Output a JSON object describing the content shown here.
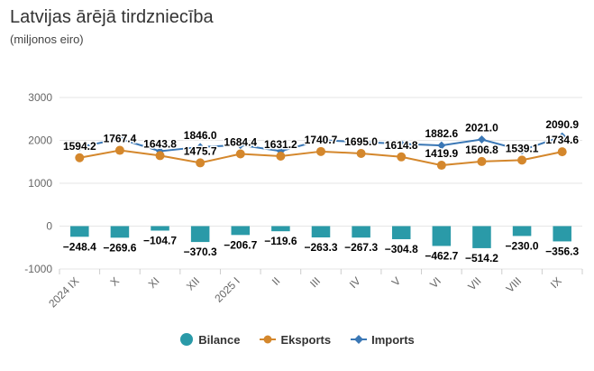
{
  "chart_data": {
    "type": "bar+line",
    "title": "Latvijas ārējā tirdzniecība",
    "subtitle": "(miljonos eiro)",
    "categories": [
      "2024 IX",
      "X",
      "XI",
      "XII",
      "2025 I",
      "II",
      "III",
      "IV",
      "V",
      "VI",
      "VII",
      "VIII",
      "IX"
    ],
    "ylim": [
      -1000,
      3000
    ],
    "yticks": [
      -1000,
      0,
      1000,
      2000,
      3000
    ],
    "series": [
      {
        "name": "Bilance",
        "type": "bar",
        "color": "#2a9aa8",
        "values": [
          -248.4,
          -269.6,
          -104.7,
          -370.3,
          -206.7,
          -119.6,
          -263.3,
          -267.3,
          -304.8,
          -462.7,
          -514.2,
          -230.0,
          -356.3
        ],
        "labels": [
          "−248.4",
          "−269.6",
          "−104.7",
          "−370.3",
          "−206.7",
          "−119.6",
          "−263.3",
          "−267.3",
          "−304.8",
          "−462.7",
          "−514.2",
          "−230.0",
          "−356.3"
        ]
      },
      {
        "name": "Eksports",
        "type": "line",
        "color": "#d4872c",
        "values": [
          1594.2,
          1767.4,
          1643.8,
          1475.7,
          1684.4,
          1631.2,
          1740.7,
          1695.0,
          1614.8,
          1419.9,
          1506.8,
          1539.1,
          1734.6
        ],
        "labels": [
          "1594.2",
          "1767.4",
          "1643.8",
          "1475.7",
          "1684.4",
          "1631.2",
          "1740.7",
          "1695.0",
          "1614.8",
          "1419.9",
          "1506.8",
          "1539.1",
          "1734.6"
        ]
      },
      {
        "name": "Imports",
        "type": "line",
        "color": "#3a77b5",
        "values": [
          1842.6,
          2037.0,
          1748.5,
          1846.0,
          1891.1,
          1750.8,
          2004.0,
          1962.3,
          1919.6,
          1882.6,
          2021.0,
          1769.1,
          2090.9
        ],
        "labels": [
          "",
          "",
          "",
          "1846.0",
          "",
          "",
          "",
          "",
          "",
          "1882.6",
          "2021.0",
          "",
          "2090.9"
        ]
      }
    ]
  }
}
